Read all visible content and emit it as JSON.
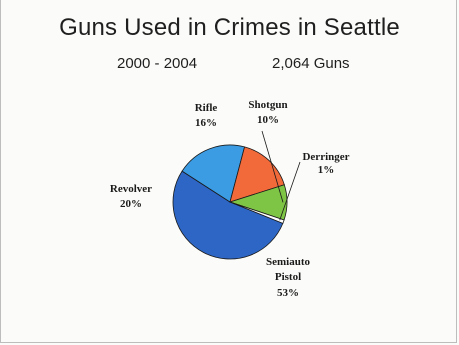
{
  "chart_data": {
    "type": "pie",
    "title": "Guns Used in Crimes in Seattle",
    "subtitle_left": "2000 - 2004",
    "subtitle_right": "2,064 Guns",
    "slices": [
      {
        "name": "Semiauto Pistol",
        "value": 53,
        "pct_label": "53%",
        "color": "#2d66c4"
      },
      {
        "name": "Revolver",
        "value": 20,
        "pct_label": "20%",
        "color": "#3b9be3"
      },
      {
        "name": "Rifle",
        "value": 16,
        "pct_label": "16%",
        "color": "#f2693a"
      },
      {
        "name": "Shotgun",
        "value": 10,
        "pct_label": "10%",
        "color": "#7ec445"
      },
      {
        "name": "Derringer",
        "value": 1,
        "pct_label": "1%",
        "color": "#ffffff"
      }
    ]
  }
}
